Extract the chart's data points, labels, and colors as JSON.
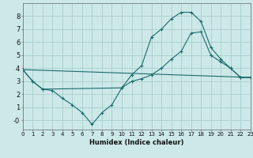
{
  "xlabel": "Humidex (Indice chaleur)",
  "bg_color": "#cce8e8",
  "grid_color": "#aacece",
  "line_color": "#1a6b6b",
  "line1_x": [
    0,
    1,
    2,
    3,
    4,
    5,
    6,
    7,
    8,
    9,
    10,
    11,
    12,
    13,
    14,
    15,
    16,
    17,
    18,
    19,
    20,
    21,
    22,
    23
  ],
  "line1_y": [
    3.9,
    3.0,
    2.4,
    2.3,
    1.7,
    1.2,
    0.6,
    -0.3,
    0.6,
    1.2,
    2.5,
    3.5,
    4.2,
    6.4,
    7.0,
    7.8,
    8.3,
    8.3,
    7.6,
    5.6,
    4.7,
    4.0,
    3.3,
    3.3
  ],
  "line2_x": [
    0,
    1,
    2,
    10,
    11,
    12,
    13,
    14,
    15,
    16,
    17,
    18,
    19,
    20,
    21,
    22,
    23
  ],
  "line2_y": [
    3.9,
    3.0,
    2.4,
    2.5,
    3.0,
    3.2,
    3.5,
    4.0,
    4.7,
    5.3,
    6.7,
    6.8,
    5.0,
    4.5,
    4.0,
    3.3,
    3.3
  ],
  "line3_x": [
    0,
    23
  ],
  "line3_y": [
    3.9,
    3.3
  ],
  "xlim": [
    0,
    23
  ],
  "ylim": [
    -0.7,
    9.0
  ],
  "yticks": [
    0,
    1,
    2,
    3,
    4,
    5,
    6,
    7,
    8
  ],
  "ytick_labels": [
    "-0",
    "1",
    "2",
    "3",
    "4",
    "5",
    "6",
    "7",
    "8"
  ],
  "xticks": [
    0,
    1,
    2,
    3,
    4,
    5,
    6,
    7,
    8,
    9,
    10,
    11,
    12,
    13,
    14,
    15,
    16,
    17,
    18,
    19,
    20,
    21,
    22,
    23
  ],
  "font_size_ticks": 5,
  "font_size_xlabel": 6
}
